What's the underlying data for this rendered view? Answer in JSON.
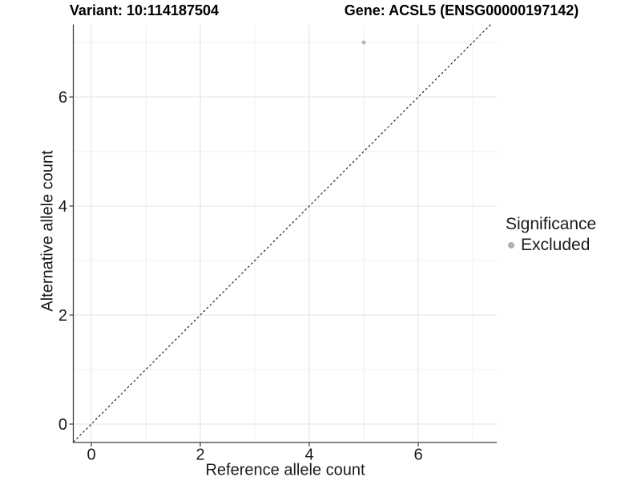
{
  "header": {
    "variant_title": "Variant: 10:114187504",
    "gene_title": "Gene: ACSL5 (ENSG00000197142)"
  },
  "chart_data": {
    "type": "scatter",
    "title": "Variant: 10:114187504 — Gene: ACSL5 (ENSG00000197142)",
    "xlabel": "Reference allele count",
    "ylabel": "Alternative allele count",
    "xlim": [
      -0.33,
      7.45
    ],
    "ylim": [
      -0.33,
      7.35
    ],
    "x_ticks": [
      0,
      2,
      4,
      6
    ],
    "y_ticks": [
      0,
      2,
      4,
      6
    ],
    "x_minor_ticks": [
      1,
      3,
      5,
      7
    ],
    "y_minor_ticks": [
      1,
      3,
      5,
      7
    ],
    "grid": "major+minor",
    "points": [
      {
        "x": 5,
        "y": 7,
        "significance": "Excluded"
      }
    ],
    "identity_line": {
      "style": "dashed",
      "from": [
        -0.33,
        -0.33
      ],
      "to": [
        7.33,
        7.33
      ]
    },
    "legend": {
      "title": "Significance",
      "position": "right",
      "items": [
        {
          "label": "Excluded",
          "color": "#b2b2b2"
        }
      ]
    },
    "colors": {
      "point": "#b2b2b2",
      "grid_major": "#e3e3e3",
      "grid_minor": "#efefef",
      "axis": "#3c3c3c",
      "reference_line": "#000000",
      "tick_text": "#1a1a1a"
    }
  }
}
